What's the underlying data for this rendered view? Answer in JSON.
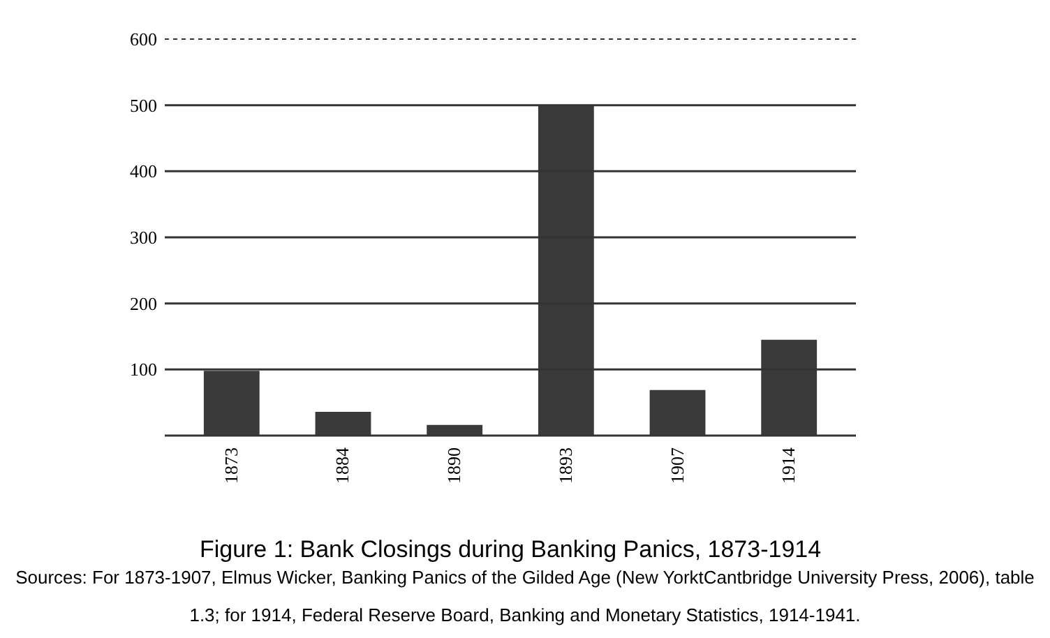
{
  "chart_data": {
    "type": "bar",
    "title": "Figure 1: Bank Closings during Banking Panics, 1873-1914",
    "categories": [
      "1873",
      "1884",
      "1890",
      "1893",
      "1907",
      "1914"
    ],
    "values": [
      98,
      36,
      16,
      500,
      69,
      145
    ],
    "color": "#3a3a3a",
    "ylim": [
      0,
      600
    ],
    "yticks": [
      100,
      200,
      300,
      400,
      500,
      600
    ],
    "grid": "y",
    "ref_lines": [
      {
        "axis": "y",
        "value": 600,
        "line_style": "dashed"
      }
    ],
    "annotations": [
      "Sources: For 1873-1907, Elmus Wicker, Banking Panics of the Gilded Age (New YorktCantbridge University Press, 2006), table 1.3; for 1914, Federal Reserve Board, Banking and Monetary Statistics, 1914-1941."
    ]
  }
}
